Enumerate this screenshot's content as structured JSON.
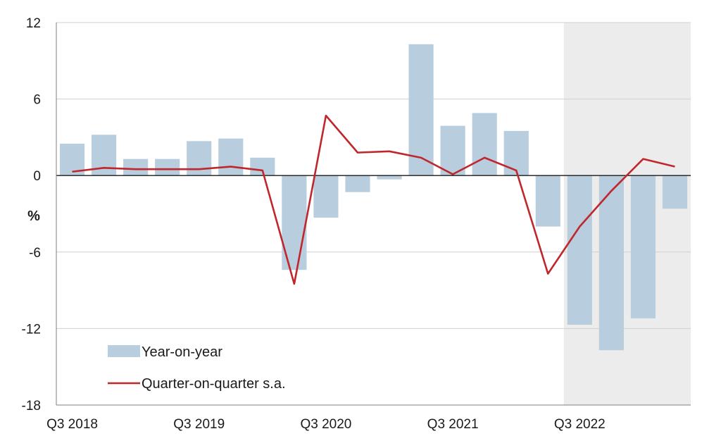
{
  "chart_data": {
    "type": "bar",
    "title": "",
    "xlabel": "",
    "ylabel": "%",
    "ylim": [
      -18,
      12
    ],
    "yticks": [
      12,
      6,
      0,
      -6,
      -12,
      -18
    ],
    "grid": true,
    "legend_position": "bottom-left",
    "x_tick_labels": [
      "Q3 2018",
      "Q3 2019",
      "Q3 2020",
      "Q3 2021",
      "Q3 2022"
    ],
    "categories": [
      "Q3 2018",
      "Q4 2018",
      "Q1 2019",
      "Q2 2019",
      "Q3 2019",
      "Q4 2019",
      "Q1 2020",
      "Q2 2020",
      "Q3 2020",
      "Q4 2020",
      "Q1 2021",
      "Q2 2021",
      "Q3 2021",
      "Q4 2021",
      "Q1 2022",
      "Q2 2022",
      "Q3 2022",
      "Q4 2022",
      "Q1 2023",
      "Q2 2023"
    ],
    "shaded_from": "Q3 2022",
    "series": [
      {
        "name": "Year-on-year",
        "type": "bar",
        "color": "#b8cddd",
        "values": [
          2.5,
          3.2,
          1.3,
          1.3,
          2.7,
          2.9,
          1.4,
          -7.4,
          -3.3,
          -1.3,
          -0.3,
          10.3,
          3.9,
          4.9,
          3.5,
          -4.0,
          -11.7,
          -13.7,
          -11.2,
          -2.6
        ]
      },
      {
        "name": "Quarter-on-quarter s.a.",
        "type": "line",
        "color": "#c0272d",
        "values": [
          0.3,
          0.6,
          0.5,
          0.5,
          0.5,
          0.7,
          0.4,
          -8.5,
          4.7,
          1.8,
          1.9,
          1.4,
          0.1,
          1.4,
          0.4,
          -7.7,
          -4.0,
          -1.2,
          1.3,
          0.7
        ]
      }
    ]
  }
}
